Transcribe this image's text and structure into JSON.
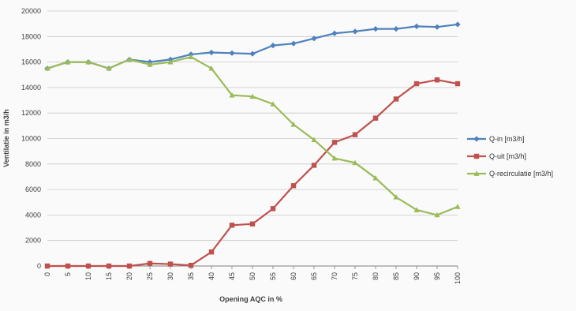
{
  "chart_data": {
    "type": "line",
    "title": "",
    "xlabel": "Opening AQC in %",
    "ylabel": "Ventilatie in  m3/h",
    "x": [
      0,
      5,
      10,
      15,
      20,
      25,
      30,
      35,
      40,
      45,
      50,
      55,
      60,
      65,
      70,
      75,
      80,
      85,
      90,
      95,
      100
    ],
    "xtick_labels": [
      "0",
      "5",
      "10",
      "15",
      "20",
      "25",
      "30",
      "35",
      "40",
      "45",
      "50",
      "55",
      "60",
      "65",
      "70",
      "75",
      "80",
      "85",
      "90",
      "95",
      "100"
    ],
    "ylim": [
      0,
      20000
    ],
    "yticks": [
      0,
      2000,
      4000,
      6000,
      8000,
      10000,
      12000,
      14000,
      16000,
      18000,
      20000
    ],
    "ytick_labels": [
      "0",
      "2000",
      "4000",
      "6000",
      "8000",
      "10000",
      "12000",
      "14000",
      "16000",
      "18000",
      "20000"
    ],
    "grid": true,
    "legend_position": "right",
    "series": [
      {
        "name": "Q-in  [m3/h]",
        "color": "#4f81bd",
        "marker": "diamond",
        "values": [
          15500,
          16000,
          16000,
          15500,
          16200,
          16000,
          16200,
          16600,
          16750,
          16700,
          16650,
          17300,
          17450,
          17850,
          18250,
          18400,
          18600,
          18600,
          18800,
          18750,
          18950
        ]
      },
      {
        "name": "Q-uit  [m3/h]",
        "color": "#c0504d",
        "marker": "square",
        "values": [
          0,
          0,
          0,
          0,
          0,
          200,
          150,
          50,
          1100,
          3200,
          3300,
          4500,
          6300,
          7900,
          9700,
          10300,
          11600,
          13100,
          14300,
          14600,
          14300
        ]
      },
      {
        "name": "Q-recirculatie [m3/h]",
        "color": "#9bbb59",
        "marker": "triangle",
        "values": [
          15500,
          16000,
          16000,
          15500,
          16200,
          15800,
          16000,
          16400,
          15500,
          13400,
          13300,
          12700,
          11100,
          9900,
          8450,
          8100,
          6900,
          5400,
          4400,
          4000,
          4650
        ]
      }
    ]
  }
}
